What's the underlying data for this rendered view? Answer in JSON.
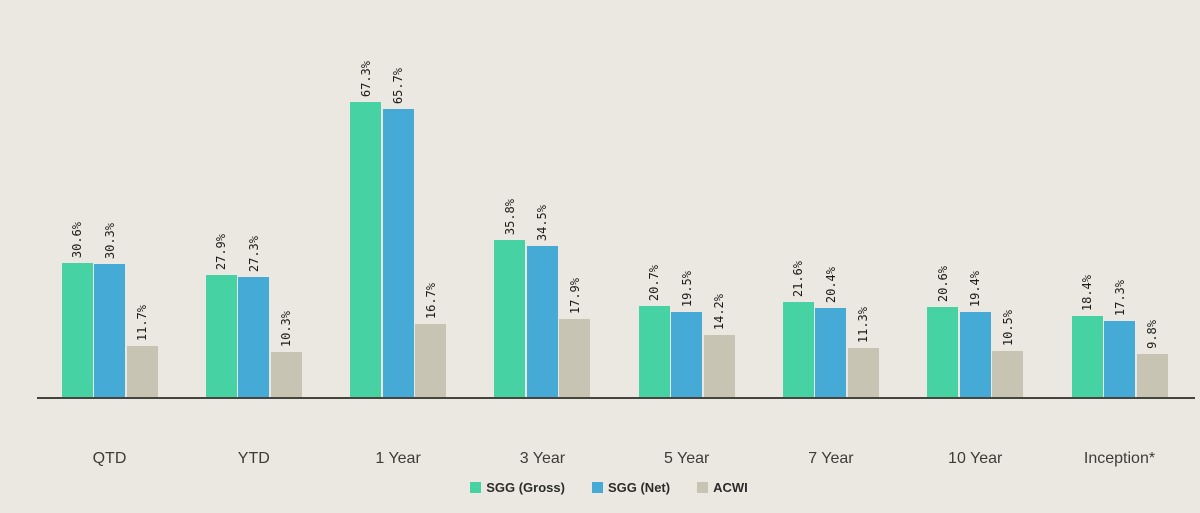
{
  "chart_data": {
    "type": "bar",
    "title": "",
    "categories": [
      "QTD",
      "YTD",
      "1 Year",
      "3 Year",
      "5 Year",
      "7 Year",
      "10 Year",
      "Inception*"
    ],
    "series": [
      {
        "name": "SGG (Gross)",
        "color": "#47d2a3",
        "values": [
          30.6,
          27.9,
          67.3,
          35.8,
          20.7,
          21.6,
          20.6,
          18.4
        ],
        "labels": [
          "30.6%",
          "27.9%",
          "67.3%",
          "35.8%",
          "20.7%",
          "21.6%",
          "20.6%",
          "18.4%"
        ]
      },
      {
        "name": "SGG (Net)",
        "color": "#46aad7",
        "values": [
          30.3,
          27.3,
          65.7,
          34.5,
          19.5,
          20.4,
          19.4,
          17.3
        ],
        "labels": [
          "30.3%",
          "27.3%",
          "65.7%",
          "34.5%",
          "19.5%",
          "20.4%",
          "19.4%",
          "17.3%"
        ]
      },
      {
        "name": "ACWI",
        "color": "#c8c4b3",
        "values": [
          11.7,
          10.3,
          16.7,
          17.9,
          14.2,
          11.3,
          10.5,
          9.8
        ],
        "labels": [
          "11.7%",
          "10.3%",
          "16.7%",
          "17.9%",
          "14.2%",
          "11.3%",
          "10.5%",
          "9.8%"
        ]
      }
    ],
    "xlabel": "",
    "ylabel": "",
    "ylim": [
      0,
      70
    ],
    "grid": false,
    "axis_visible": "x-only",
    "value_labels_rotated": true,
    "legend_position": "bottom",
    "background_color": "#ebe8e1",
    "axis_color": "#45443e"
  }
}
